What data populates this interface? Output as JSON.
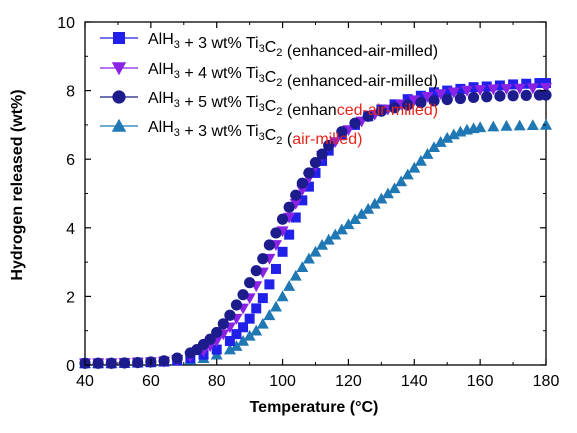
{
  "chart_data": {
    "type": "scatter",
    "xlabel": "Temperature (°C)",
    "ylabel": "Hydrogen released (wt%)",
    "xlim": [
      40,
      180
    ],
    "ylim": [
      0,
      10
    ],
    "xticks": [
      40,
      60,
      80,
      100,
      120,
      140,
      160,
      180
    ],
    "yticks": [
      0,
      2,
      4,
      6,
      8,
      10
    ],
    "legend_position": "top-right",
    "series": [
      {
        "id": "s1",
        "legend_parts": [
          {
            "t": "AlH",
            "c": "#000000"
          },
          {
            "t": "3",
            "sub": true,
            "c": "#000000"
          },
          {
            "t": " + 3 wt% Ti",
            "c": "#000000"
          },
          {
            "t": "3",
            "sub": true,
            "c": "#000000"
          },
          {
            "t": "C",
            "c": "#000000"
          },
          {
            "t": "2",
            "sub": true,
            "c": "#000000"
          },
          {
            "t": " (enhanced-air-milled)",
            "c": "#000000"
          }
        ],
        "marker": "square",
        "color": "#2020e8",
        "x": [
          40,
          44,
          48,
          52,
          56,
          60,
          64,
          68,
          72,
          76,
          80,
          84,
          86,
          88,
          90,
          92,
          94,
          96,
          98,
          100,
          102,
          104,
          106,
          108,
          110,
          112,
          114,
          118,
          122,
          126,
          130,
          134,
          138,
          142,
          146,
          150,
          154,
          158,
          162,
          166,
          170,
          174,
          178,
          180
        ],
        "y": [
          0.05,
          0.05,
          0.05,
          0.06,
          0.07,
          0.08,
          0.1,
          0.13,
          0.2,
          0.3,
          0.45,
          0.7,
          0.9,
          1.1,
          1.35,
          1.65,
          1.95,
          2.35,
          2.8,
          3.3,
          3.8,
          4.3,
          4.8,
          5.2,
          5.6,
          5.95,
          6.25,
          6.7,
          7.0,
          7.25,
          7.45,
          7.6,
          7.75,
          7.85,
          7.95,
          8.0,
          8.05,
          8.1,
          8.12,
          8.15,
          8.18,
          8.2,
          8.22,
          8.22
        ]
      },
      {
        "id": "s2",
        "legend_parts": [
          {
            "t": "AlH",
            "c": "#000000"
          },
          {
            "t": "3",
            "sub": true,
            "c": "#000000"
          },
          {
            "t": " + 4 wt% Ti",
            "c": "#000000"
          },
          {
            "t": "3",
            "sub": true,
            "c": "#000000"
          },
          {
            "t": "C",
            "c": "#000000"
          },
          {
            "t": "2",
            "sub": true,
            "c": "#000000"
          },
          {
            "t": " (enhanced-air-milled)",
            "c": "#000000"
          }
        ],
        "marker": "triangle-down",
        "color": "#8a22e6",
        "x": [
          40,
          44,
          48,
          52,
          56,
          60,
          64,
          68,
          72,
          76,
          78,
          80,
          82,
          84,
          86,
          88,
          90,
          92,
          94,
          96,
          98,
          100,
          102,
          104,
          106,
          108,
          110,
          112,
          116,
          120,
          124,
          128,
          132,
          136,
          140,
          144,
          148,
          152,
          156,
          160,
          164,
          168,
          172,
          176,
          180
        ],
        "y": [
          0.05,
          0.05,
          0.05,
          0.06,
          0.07,
          0.08,
          0.1,
          0.15,
          0.25,
          0.4,
          0.55,
          0.7,
          0.9,
          1.1,
          1.35,
          1.65,
          1.95,
          2.3,
          2.7,
          3.1,
          3.5,
          3.9,
          4.3,
          4.7,
          5.1,
          5.45,
          5.8,
          6.1,
          6.5,
          6.85,
          7.1,
          7.3,
          7.45,
          7.6,
          7.72,
          7.82,
          7.9,
          7.95,
          8.0,
          8.02,
          8.04,
          8.05,
          8.06,
          8.07,
          8.08
        ]
      },
      {
        "id": "s3",
        "legend_parts": [
          {
            "t": "AlH",
            "c": "#000000"
          },
          {
            "t": "3",
            "sub": true,
            "c": "#000000"
          },
          {
            "t": " + 5 wt% Ti",
            "c": "#000000"
          },
          {
            "t": "3",
            "sub": true,
            "c": "#000000"
          },
          {
            "t": "C",
            "c": "#000000"
          },
          {
            "t": "2",
            "sub": true,
            "c": "#000000"
          },
          {
            "t": " (enhan",
            "c": "#000000"
          },
          {
            "t": "ced-air-milled)",
            "c": "#e8261c"
          }
        ],
        "marker": "circle",
        "color": "#1c1c8c",
        "x": [
          40,
          44,
          48,
          52,
          56,
          60,
          64,
          68,
          72,
          74,
          76,
          78,
          80,
          82,
          84,
          86,
          88,
          90,
          92,
          94,
          96,
          98,
          100,
          102,
          104,
          106,
          108,
          110,
          112,
          114,
          118,
          122,
          126,
          130,
          134,
          138,
          142,
          146,
          150,
          154,
          158,
          162,
          166,
          170,
          174,
          178,
          180
        ],
        "y": [
          0.05,
          0.05,
          0.05,
          0.06,
          0.07,
          0.09,
          0.12,
          0.2,
          0.35,
          0.45,
          0.6,
          0.75,
          0.95,
          1.2,
          1.45,
          1.75,
          2.05,
          2.4,
          2.75,
          3.1,
          3.5,
          3.85,
          4.25,
          4.6,
          4.95,
          5.3,
          5.6,
          5.9,
          6.15,
          6.4,
          6.8,
          7.05,
          7.25,
          7.4,
          7.5,
          7.58,
          7.65,
          7.7,
          7.74,
          7.77,
          7.8,
          7.82,
          7.84,
          7.85,
          7.86,
          7.87,
          7.87
        ]
      },
      {
        "id": "s4",
        "legend_parts": [
          {
            "t": "AlH",
            "c": "#000000"
          },
          {
            "t": "3",
            "sub": true,
            "c": "#000000"
          },
          {
            "t": " + 3 wt% Ti",
            "c": "#000000"
          },
          {
            "t": "3",
            "sub": true,
            "c": "#000000"
          },
          {
            "t": "C",
            "c": "#000000"
          },
          {
            "t": "2",
            "sub": true,
            "c": "#000000"
          },
          {
            "t": " (",
            "c": "#000000"
          },
          {
            "t": "air-milled)",
            "c": "#e8261c"
          }
        ],
        "marker": "triangle-up",
        "color": "#1f77b4",
        "x": [
          40,
          44,
          48,
          52,
          56,
          60,
          64,
          68,
          72,
          76,
          80,
          84,
          86,
          88,
          90,
          92,
          94,
          96,
          98,
          100,
          102,
          104,
          106,
          108,
          110,
          112,
          114,
          116,
          118,
          120,
          122,
          124,
          126,
          128,
          130,
          132,
          134,
          136,
          138,
          140,
          142,
          144,
          146,
          148,
          150,
          152,
          154,
          156,
          158,
          160,
          164,
          168,
          172,
          176,
          180
        ],
        "y": [
          0.05,
          0.05,
          0.05,
          0.06,
          0.07,
          0.08,
          0.1,
          0.12,
          0.15,
          0.2,
          0.3,
          0.45,
          0.55,
          0.7,
          0.85,
          1.0,
          1.2,
          1.45,
          1.7,
          2.0,
          2.3,
          2.6,
          2.85,
          3.1,
          3.3,
          3.5,
          3.65,
          3.8,
          3.95,
          4.1,
          4.25,
          4.4,
          4.55,
          4.7,
          4.85,
          5.0,
          5.15,
          5.35,
          5.55,
          5.75,
          5.95,
          6.15,
          6.35,
          6.5,
          6.62,
          6.72,
          6.8,
          6.86,
          6.9,
          6.93,
          6.95,
          6.97,
          6.98,
          6.99,
          7.0
        ]
      }
    ]
  }
}
